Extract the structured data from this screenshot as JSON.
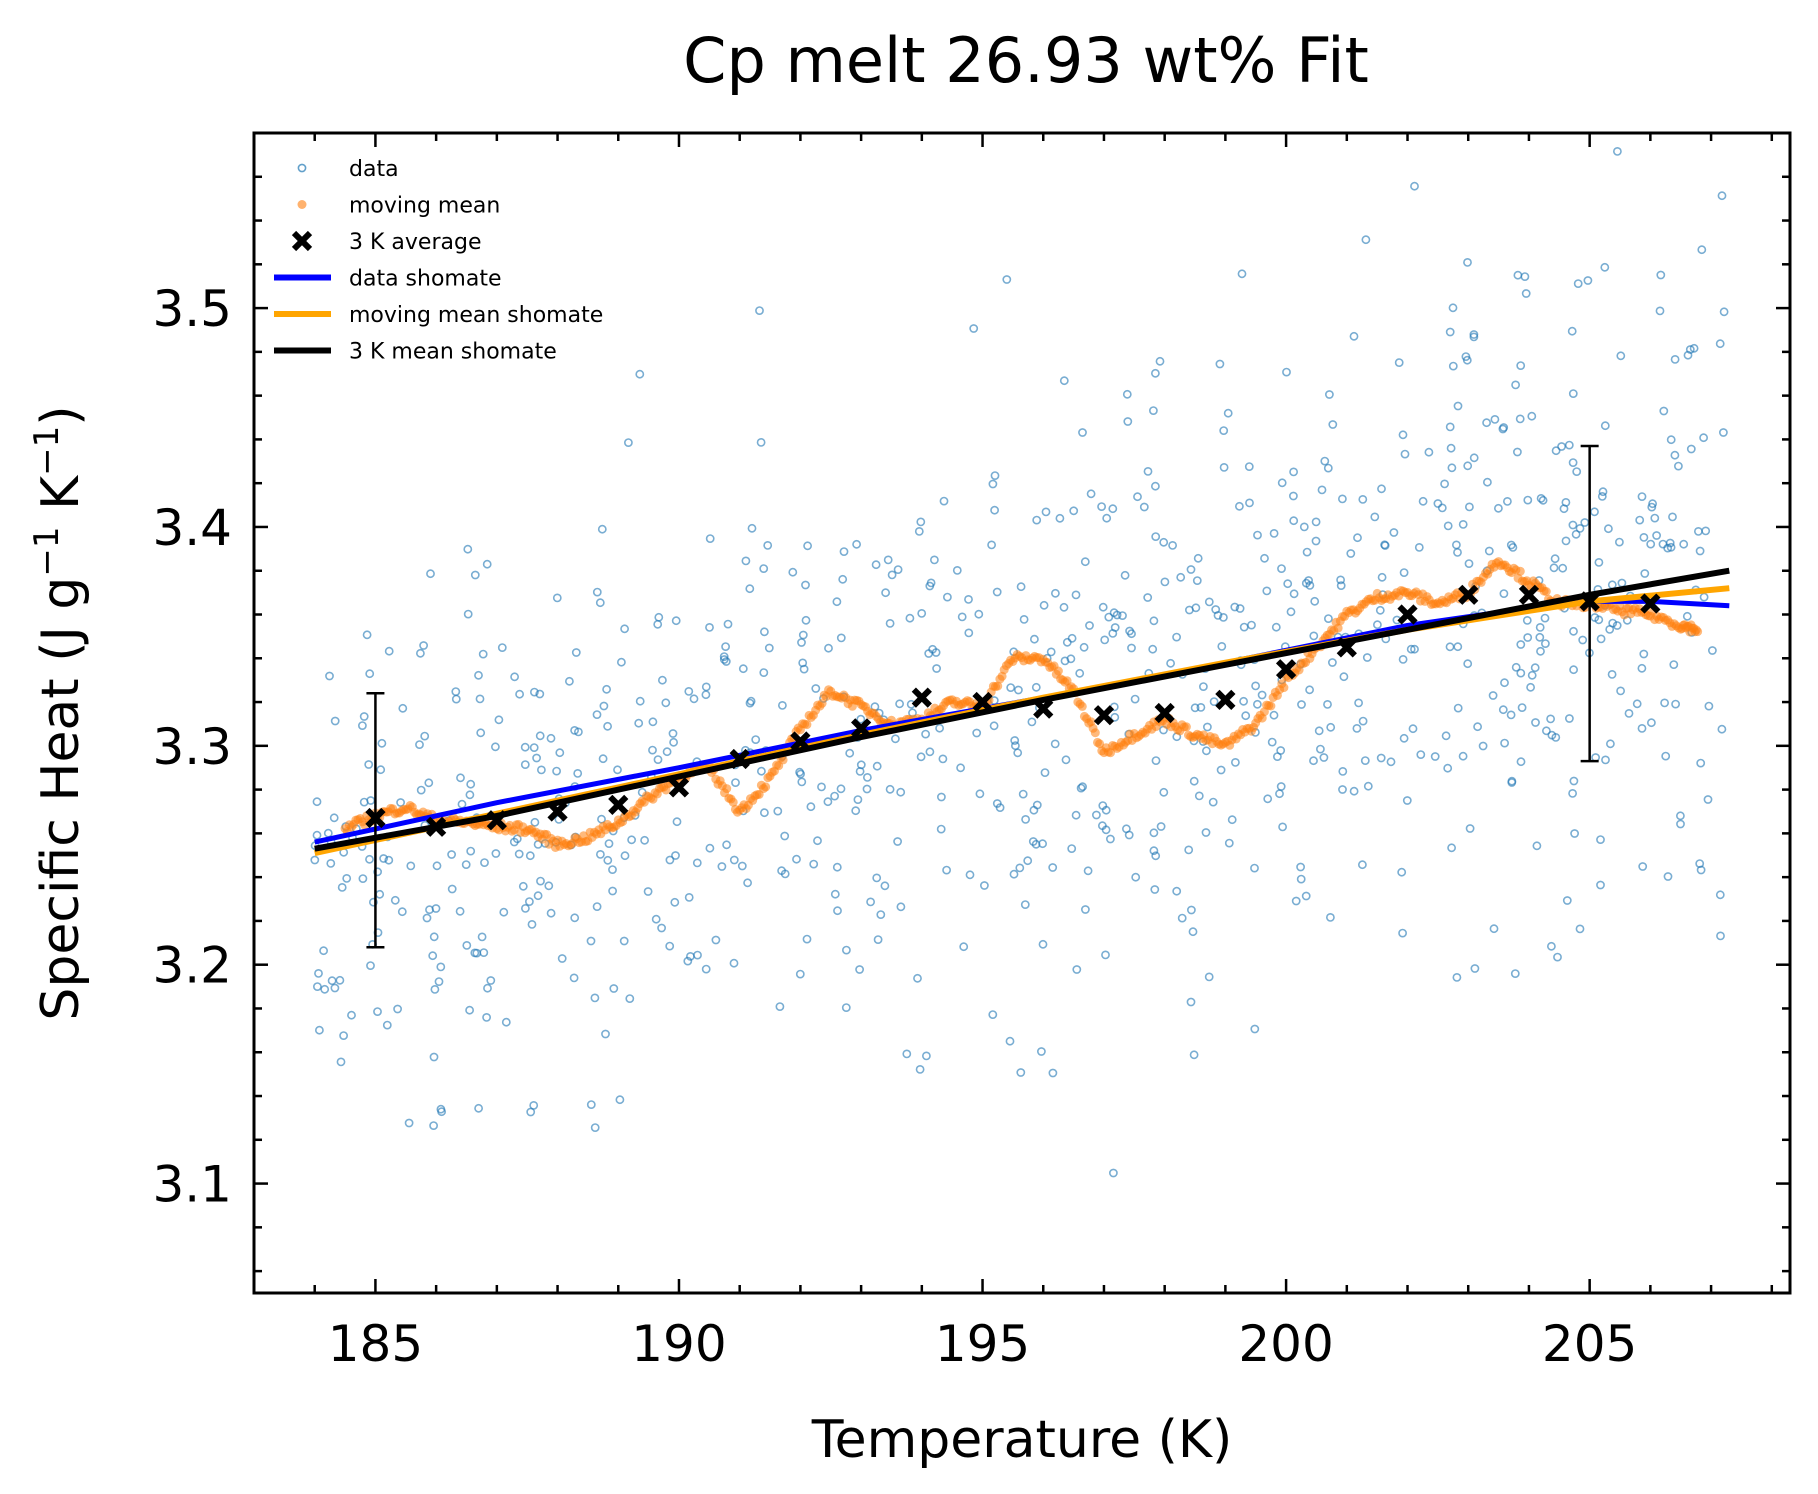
{
  "chart_data": {
    "type": "scatter",
    "title": "Cp melt 26.93 wt% Fit",
    "xlabel": "Temperature (K)",
    "ylabel": {
      "main": "Specific Heat (J g",
      "sup1": "−1",
      "mid": " K",
      "sup2": "−1",
      "end": ")"
    },
    "xlim": [
      183,
      208.3
    ],
    "ylim": [
      3.05,
      3.58
    ],
    "x_ticks": [
      185,
      190,
      195,
      200,
      205
    ],
    "x_tick_labels": [
      "185",
      "190",
      "195",
      "200",
      "205"
    ],
    "y_ticks": [
      3.1,
      3.2,
      3.3,
      3.4,
      3.5
    ],
    "y_tick_labels": [
      "3.1",
      "3.2",
      "3.3",
      "3.4",
      "3.5"
    ],
    "grid": false,
    "legend_position": "top-left",
    "colors": {
      "data": "#1f77b4",
      "moving_mean": "#ff7f0e",
      "avg": "#000000",
      "data_fit": "#0000ff",
      "moving_fit": "#ffa500",
      "avg_fit": "#000000"
    },
    "series": [
      {
        "name": "data",
        "kind": "scatter-hollow",
        "x_range": [
          184,
          207.3
        ],
        "n": 900,
        "noise_sd": 0.065,
        "seed": 7
      },
      {
        "name": "moving mean",
        "kind": "scatter-filled",
        "x": [
          184.5,
          185,
          185.5,
          186,
          186.5,
          187,
          187.5,
          188,
          188.5,
          189,
          189.5,
          190,
          190.5,
          191,
          191.5,
          192,
          192.5,
          193,
          193.5,
          194,
          194.5,
          195,
          195.5,
          196,
          196.5,
          197,
          197.5,
          198,
          198.5,
          199,
          199.5,
          200,
          200.5,
          201,
          201.5,
          202,
          202.5,
          203,
          203.5,
          204,
          204.5,
          205,
          205.5,
          206,
          206.5,
          206.8
        ],
        "y": [
          3.262,
          3.268,
          3.272,
          3.266,
          3.265,
          3.263,
          3.262,
          3.255,
          3.258,
          3.265,
          3.276,
          3.286,
          3.29,
          3.27,
          3.285,
          3.308,
          3.325,
          3.318,
          3.31,
          3.312,
          3.32,
          3.318,
          3.34,
          3.34,
          3.325,
          3.297,
          3.305,
          3.312,
          3.305,
          3.3,
          3.31,
          3.33,
          3.345,
          3.36,
          3.368,
          3.37,
          3.365,
          3.37,
          3.385,
          3.375,
          3.365,
          3.365,
          3.362,
          3.36,
          3.355,
          3.353
        ]
      },
      {
        "name": "3 K average",
        "kind": "marker-x",
        "x": [
          185,
          186,
          187,
          188,
          189,
          190,
          191,
          192,
          193,
          194,
          195,
          196,
          197,
          198,
          199,
          200,
          201,
          202,
          203,
          204,
          205,
          206
        ],
        "y": [
          3.267,
          3.263,
          3.266,
          3.27,
          3.273,
          3.281,
          3.294,
          3.302,
          3.308,
          3.322,
          3.32,
          3.317,
          3.314,
          3.315,
          3.321,
          3.335,
          3.345,
          3.36,
          3.369,
          3.369,
          3.366,
          3.365
        ],
        "error_bars": [
          {
            "x": 185,
            "y": 3.267,
            "low": 3.208,
            "high": 3.324
          },
          {
            "x": 205,
            "y": 3.366,
            "low": 3.293,
            "high": 3.437
          }
        ]
      },
      {
        "name": "data shomate",
        "kind": "line",
        "x": [
          184,
          187,
          190,
          193,
          196,
          199,
          202,
          204,
          205,
          206,
          207.3
        ],
        "y": [
          3.256,
          3.274,
          3.29,
          3.307,
          3.322,
          3.338,
          3.355,
          3.363,
          3.366,
          3.366,
          3.364
        ]
      },
      {
        "name": "moving mean shomate",
        "kind": "line",
        "x": [
          184,
          187,
          190,
          193,
          196,
          199,
          202,
          205,
          207.3
        ],
        "y": [
          3.251,
          3.269,
          3.287,
          3.305,
          3.322,
          3.338,
          3.353,
          3.366,
          3.372
        ]
      },
      {
        "name": "3 K mean shomate",
        "kind": "line",
        "x": [
          184,
          187,
          190,
          193,
          196,
          199,
          202,
          205,
          207.3
        ],
        "y": [
          3.253,
          3.268,
          3.286,
          3.304,
          3.321,
          3.337,
          3.353,
          3.369,
          3.38
        ]
      }
    ]
  }
}
